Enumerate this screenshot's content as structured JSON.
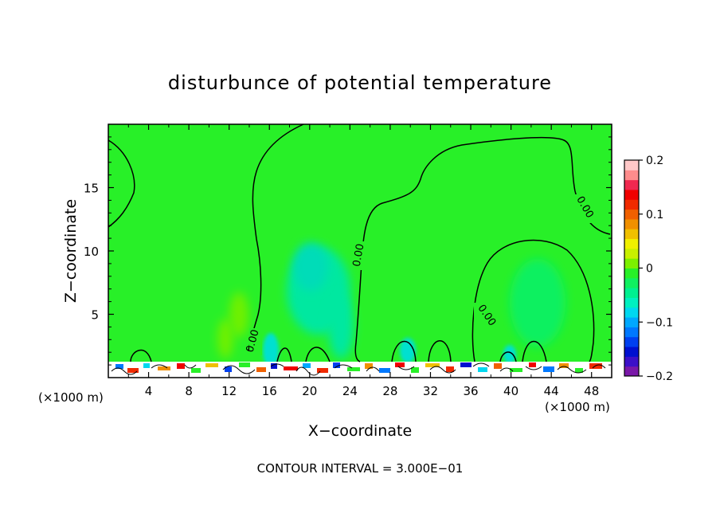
{
  "chart_data": {
    "type": "heatmap",
    "title": "disturbunce of potential temperature",
    "xlabel": "X−coordinate",
    "ylabel": "Z−coordinate",
    "x_unit": "(×1000 m)",
    "x_unit_right": "(×1000 m)",
    "footer": "CONTOUR INTERVAL = 3.000E−01",
    "xlim": [
      0,
      50
    ],
    "ylim": [
      0,
      20
    ],
    "x_ticks": [
      4,
      8,
      12,
      16,
      20,
      24,
      28,
      32,
      36,
      40,
      44,
      48
    ],
    "y_ticks": [
      5,
      10,
      15
    ],
    "colorbar": {
      "range": [
        -0.2,
        0.2
      ],
      "tick_values": [
        0.2,
        0.1,
        0,
        -0.1,
        -0.2
      ],
      "tick_labels": [
        "0.2",
        "0.1",
        "0",
        "−0.1",
        "−0.2"
      ],
      "colors": [
        "#7a18a8",
        "#3c10c8",
        "#0010d0",
        "#0040f0",
        "#0078ff",
        "#00a8ff",
        "#00d8f0",
        "#00f0c0",
        "#00f090",
        "#10f060",
        "#28f028",
        "#7cf000",
        "#c8f000",
        "#f0f000",
        "#f0c000",
        "#f09000",
        "#f06000",
        "#f02a00",
        "#f00000",
        "#f02850",
        "#ff8c8c",
        "#ffc8c8"
      ]
    },
    "contour_labels": [
      "0.00",
      "0.00",
      "0.00",
      "0.00"
    ],
    "background_value_color": "#28f028"
  }
}
